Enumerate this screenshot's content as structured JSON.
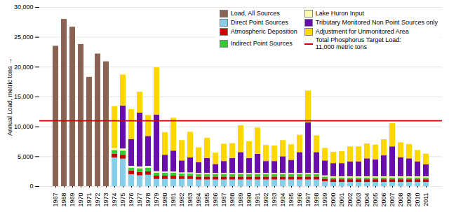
{
  "chart_data": {
    "type": "bar",
    "stacked": true,
    "categories": [
      "1967",
      "1968",
      "1969",
      "1970",
      "1971",
      "1972",
      "1973",
      "1974",
      "1975",
      "1976",
      "1977",
      "1978",
      "1979",
      "1980",
      "1981",
      "1982",
      "1983",
      "1984",
      "1985",
      "1986",
      "1987",
      "1988",
      "1989",
      "1990",
      "1991",
      "1992",
      "1993",
      "1994",
      "1995",
      "1996",
      "1997",
      "1998",
      "1999",
      "2000",
      "2001",
      "2002",
      "2003",
      "2004",
      "2005",
      "2006",
      "2007",
      "2008",
      "2009",
      "2010",
      "2011"
    ],
    "series": [
      {
        "name": "Load, All Sources",
        "color": "#8B6355",
        "values": [
          23500,
          28000,
          26700,
          23800,
          18300,
          22200,
          20900,
          0,
          0,
          0,
          0,
          0,
          0,
          0,
          0,
          0,
          0,
          0,
          0,
          0,
          0,
          0,
          0,
          0,
          0,
          0,
          0,
          0,
          0,
          0,
          0,
          0,
          0,
          0,
          0,
          0,
          0,
          0,
          0,
          0,
          0,
          0,
          0,
          0,
          0
        ]
      },
      {
        "name": "Direct Point Sources",
        "color": "#87CEEB",
        "values": [
          0,
          0,
          0,
          0,
          0,
          0,
          0,
          4800,
          4600,
          2000,
          1800,
          1900,
          1200,
          1200,
          1200,
          1200,
          1200,
          1100,
          1100,
          1100,
          1100,
          1100,
          1100,
          1100,
          1100,
          1100,
          1100,
          1100,
          1100,
          1100,
          1100,
          1100,
          800,
          700,
          700,
          700,
          700,
          700,
          700,
          700,
          700,
          700,
          700,
          700,
          700
        ]
      },
      {
        "name": "Atmospheric Deposition",
        "color": "#CC0000",
        "values": [
          0,
          0,
          0,
          0,
          0,
          0,
          0,
          650,
          650,
          600,
          600,
          600,
          550,
          550,
          550,
          500,
          500,
          500,
          500,
          500,
          500,
          500,
          500,
          500,
          500,
          500,
          500,
          500,
          500,
          500,
          500,
          500,
          450,
          450,
          450,
          450,
          450,
          450,
          450,
          450,
          450,
          450,
          450,
          450,
          450
        ]
      },
      {
        "name": "Indirect Point Sources",
        "color": "#32CD32",
        "values": [
          0,
          0,
          0,
          0,
          0,
          0,
          0,
          600,
          700,
          500,
          600,
          600,
          500,
          500,
          500,
          400,
          400,
          400,
          400,
          400,
          400,
          400,
          400,
          400,
          400,
          400,
          400,
          400,
          400,
          400,
          400,
          400,
          350,
          300,
          300,
          300,
          300,
          300,
          300,
          300,
          300,
          300,
          300,
          300,
          300
        ]
      },
      {
        "name": "Lake Huron Input",
        "color": "#FFFFAA",
        "values": [
          0,
          0,
          0,
          0,
          0,
          0,
          0,
          350,
          350,
          300,
          300,
          300,
          250,
          200,
          200,
          200,
          200,
          200,
          200,
          200,
          200,
          200,
          200,
          200,
          200,
          200,
          200,
          200,
          200,
          200,
          200,
          200,
          200,
          200,
          200,
          200,
          200,
          200,
          200,
          200,
          200,
          200,
          200,
          200,
          200
        ]
      },
      {
        "name": "Tributary Monitored Non Point Sources only",
        "color": "#6A0DAD",
        "values": [
          0,
          0,
          0,
          0,
          0,
          0,
          0,
          0,
          7200,
          4500,
          9000,
          5000,
          9500,
          2800,
          3500,
          2000,
          2500,
          1800,
          2500,
          1500,
          2000,
          2500,
          3500,
          2500,
          3200,
          2000,
          2000,
          2800,
          2200,
          3500,
          8500,
          3500,
          2500,
          2200,
          2200,
          2500,
          2500,
          3000,
          2800,
          3500,
          5000,
          3200,
          3000,
          2500,
          2000
        ]
      },
      {
        "name": "Adjustment for Unmonitored Area",
        "color": "#FFD700",
        "values": [
          0,
          0,
          0,
          0,
          0,
          0,
          0,
          7000,
          5200,
          5000,
          3500,
          3500,
          7900,
          3800,
          5500,
          3400,
          4300,
          2500,
          3400,
          1900,
          2900,
          2500,
          4500,
          2800,
          4400,
          2700,
          2600,
          2700,
          2600,
          2900,
          5300,
          2800,
          2100,
          1900,
          2000,
          2500,
          2500,
          2500,
          2500,
          2700,
          3900,
          2500,
          2400,
          1900,
          1800
        ]
      }
    ],
    "target": {
      "name": "Total Phosphorus Target Load:\n11,000 metric tons",
      "value": 11000,
      "color": "#CC0000"
    },
    "ylabel": "Annual Load, metric tons",
    "ylim": [
      0,
      30000
    ],
    "yticks": [
      0,
      {
        "value": 5000,
        "label": "5,000"
      },
      {
        "value": 10000,
        "label": "10,000"
      },
      {
        "value": 15000,
        "label": "15,000"
      },
      {
        "value": 20000,
        "label": "20,000"
      },
      {
        "value": 25000,
        "label": "25,000"
      },
      {
        "value": 30000,
        "label": "30,000"
      }
    ],
    "grid": true,
    "legend": "upper right"
  }
}
